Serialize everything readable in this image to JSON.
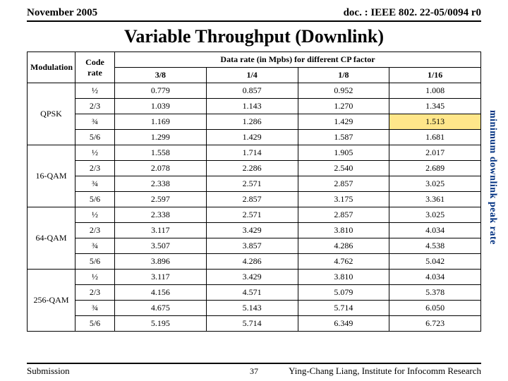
{
  "header": {
    "date": "November 2005",
    "doc": "doc. : IEEE 802. 22-05/0094 r0"
  },
  "title": "Variable Throughput (Downlink)",
  "side_label": "minimum downlink peak rate",
  "table": {
    "col_modulation": "Modulation",
    "col_code": "Code rate",
    "col_data_header": "Data rate (in Mpbs) for different CP factor",
    "cp_factors": [
      "3/8",
      "1/4",
      "1/8",
      "1/16"
    ],
    "groups": [
      {
        "modulation": "QPSK",
        "rows": [
          {
            "code": "½",
            "v": [
              "0.779",
              "0.857",
              "0.952",
              "1.008"
            ]
          },
          {
            "code": "2/3",
            "v": [
              "1.039",
              "1.143",
              "1.270",
              "1.345"
            ]
          },
          {
            "code": "¾",
            "v": [
              "1.169",
              "1.286",
              "1.429",
              "1.513"
            ],
            "hl": [
              false,
              false,
              false,
              true
            ]
          },
          {
            "code": "5/6",
            "v": [
              "1.299",
              "1.429",
              "1.587",
              "1.681"
            ]
          }
        ]
      },
      {
        "modulation": "16-QAM",
        "rows": [
          {
            "code": "½",
            "v": [
              "1.558",
              "1.714",
              "1.905",
              "2.017"
            ]
          },
          {
            "code": "2/3",
            "v": [
              "2.078",
              "2.286",
              "2.540",
              "2.689"
            ]
          },
          {
            "code": "¾",
            "v": [
              "2.338",
              "2.571",
              "2.857",
              "3.025"
            ]
          },
          {
            "code": "5/6",
            "v": [
              "2.597",
              "2.857",
              "3.175",
              "3.361"
            ]
          }
        ]
      },
      {
        "modulation": "64-QAM",
        "rows": [
          {
            "code": "½",
            "v": [
              "2.338",
              "2.571",
              "2.857",
              "3.025"
            ]
          },
          {
            "code": "2/3",
            "v": [
              "3.117",
              "3.429",
              "3.810",
              "4.034"
            ]
          },
          {
            "code": "¾",
            "v": [
              "3.507",
              "3.857",
              "4.286",
              "4.538"
            ]
          },
          {
            "code": "5/6",
            "v": [
              "3.896",
              "4.286",
              "4.762",
              "5.042"
            ]
          }
        ]
      },
      {
        "modulation": "256-QAM",
        "rows": [
          {
            "code": "½",
            "v": [
              "3.117",
              "3.429",
              "3.810",
              "4.034"
            ]
          },
          {
            "code": "2/3",
            "v": [
              "4.156",
              "4.571",
              "5.079",
              "5.378"
            ]
          },
          {
            "code": "¾",
            "v": [
              "4.675",
              "5.143",
              "5.714",
              "6.050"
            ]
          },
          {
            "code": "5/6",
            "v": [
              "5.195",
              "5.714",
              "6.349",
              "6.723"
            ]
          }
        ]
      }
    ]
  },
  "footer": {
    "left": "Submission",
    "page": "37",
    "right": "Ying-Chang Liang, Institute for Infocomm Research"
  }
}
